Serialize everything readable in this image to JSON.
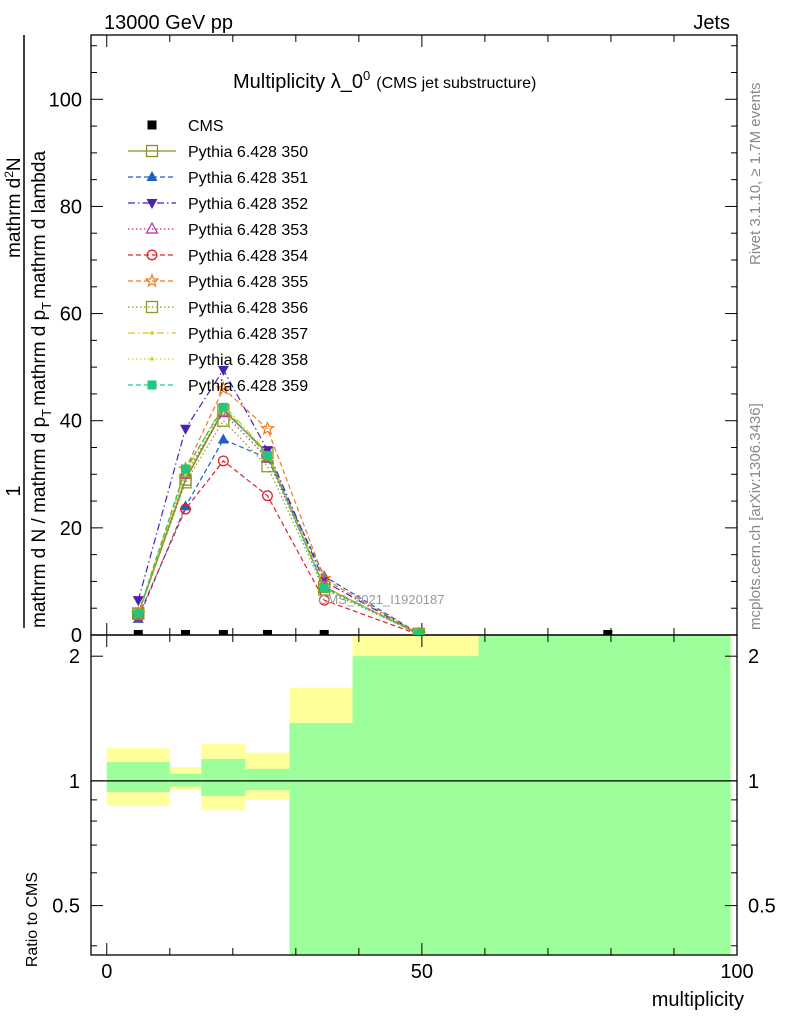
{
  "header": {
    "left": "13000 GeV pp",
    "right": "Jets"
  },
  "side_labels": {
    "rivet": "Rivet 3.1.10, ≥ 1.7M events",
    "mcplots": "mcplots.cern.ch [arXiv:1306.3436]"
  },
  "watermark": "CMS_2021_I1920187",
  "colors": {
    "cms": "#000000",
    "s350": "#8c8c2a",
    "s351": "#1f5fbf",
    "s352": "#4b22b0",
    "s353": "#b0309a",
    "s354": "#e0202a",
    "s355": "#f07a1f",
    "s356": "#8c9a22",
    "s357": "#d6c81e",
    "s358": "#c8d21e",
    "s359": "#21c77c",
    "band_inner": "#9cff9c",
    "band_outer": "#ffff9c"
  },
  "chart_data": [
    {
      "type": "line",
      "title": "Multiplicity λ_0",
      "title_sup": "0",
      "subtitle": "(CMS jet substructure)",
      "ylabel_numerator": "1",
      "ylabel_denominator": "mathrm d N / mathrm d p",
      "ylabel_denominator_sub": "T",
      "ylabel_denominator_tail": "mathrm d p",
      "ylabel_denominator_sub2": "T",
      "ylabel_denominator_end": "mathrm d lambda",
      "ylabel_top": "mathrm d",
      "ylabel_top_sup": "2",
      "ylabel_top_end": "N",
      "xlim": [
        -2.5,
        100
      ],
      "ylim": [
        0,
        112
      ],
      "yticks": [
        0,
        20,
        40,
        60,
        80,
        100
      ],
      "legend_position": "top-left",
      "x": [
        5,
        12.5,
        18.5,
        25.5,
        34.5,
        49.5
      ],
      "series": [
        {
          "name": "CMS",
          "marker": "square-filled",
          "style": "none",
          "points": [
            [
              5,
              0.1
            ],
            [
              12.5,
              0.1
            ],
            [
              18.5,
              0.1
            ],
            [
              25.5,
              0.1
            ],
            [
              34.5,
              0.1
            ],
            [
              79.5,
              0.1
            ]
          ]
        },
        {
          "name": "Pythia 6.428 350",
          "marker": "square-open",
          "style": "solid",
          "values": [
            4.0,
            29.0,
            42.0,
            34.0,
            9.0,
            0.2
          ]
        },
        {
          "name": "Pythia 6.428 351",
          "marker": "triangle-up-filled",
          "style": "dash",
          "values": [
            3.0,
            24.0,
            36.5,
            33.0,
            11.0,
            0.3
          ]
        },
        {
          "name": "Pythia 6.428 352",
          "marker": "triangle-down-filled",
          "style": "dashdot",
          "values": [
            6.5,
            38.5,
            49.5,
            34.5,
            10.0,
            0.2
          ]
        },
        {
          "name": "Pythia 6.428 353",
          "marker": "triangle-up-open",
          "style": "dot",
          "values": [
            4.0,
            30.0,
            41.5,
            33.0,
            9.0,
            0.2
          ]
        },
        {
          "name": "Pythia 6.428 354",
          "marker": "circle-open",
          "style": "dash",
          "values": [
            3.5,
            23.5,
            32.5,
            26.0,
            6.5,
            0.1
          ]
        },
        {
          "name": "Pythia 6.428 355",
          "marker": "star-open",
          "style": "dash",
          "values": [
            4.0,
            31.0,
            46.0,
            38.5,
            10.5,
            0.2
          ]
        },
        {
          "name": "Pythia 6.428 356",
          "marker": "square-open",
          "style": "dot",
          "values": [
            4.0,
            28.5,
            40.0,
            31.5,
            8.5,
            0.2
          ]
        },
        {
          "name": "Pythia 6.428 357",
          "marker": "dot",
          "style": "dashdot",
          "values": [
            4.0,
            30.5,
            43.0,
            34.0,
            9.0,
            0.2
          ]
        },
        {
          "name": "Pythia 6.428 358",
          "marker": "dot",
          "style": "dot",
          "values": [
            4.0,
            30.0,
            42.5,
            33.5,
            9.0,
            0.2
          ]
        },
        {
          "name": "Pythia 6.428 359",
          "marker": "square-filled",
          "style": "dash",
          "values": [
            4.0,
            31.0,
            42.5,
            33.5,
            8.8,
            0.2
          ]
        }
      ]
    },
    {
      "type": "area",
      "xlabel": "multiplicity",
      "ylabel": "Ratio to CMS",
      "xlim": [
        -2.5,
        100
      ],
      "ylim": [
        0.38,
        2.25
      ],
      "yscale": "log",
      "yticks": [
        0.5,
        1,
        2
      ],
      "xticks": [
        0,
        50,
        100
      ],
      "reference_line": 1,
      "bins": [
        {
          "x": [
            0,
            10
          ],
          "inner": [
            0.94,
            1.11
          ],
          "outer": [
            0.87,
            1.2
          ]
        },
        {
          "x": [
            10,
            15
          ],
          "inner": [
            0.97,
            1.04
          ],
          "outer": [
            0.95,
            1.08
          ]
        },
        {
          "x": [
            15,
            22
          ],
          "inner": [
            0.92,
            1.13
          ],
          "outer": [
            0.85,
            1.23
          ]
        },
        {
          "x": [
            22,
            29
          ],
          "inner": [
            0.95,
            1.07
          ],
          "outer": [
            0.9,
            1.17
          ]
        },
        {
          "x": [
            29,
            39
          ],
          "inner": [
            0.29,
            1.38
          ],
          "outer": [
            0.29,
            1.68
          ]
        },
        {
          "x": [
            39,
            59
          ],
          "inner": [
            0.29,
            2.0
          ],
          "outer": [
            0.29,
            2.5
          ]
        },
        {
          "x": [
            59,
            99
          ],
          "inner": [
            0.29,
            2.5
          ],
          "outer": [
            0.29,
            2.5
          ]
        }
      ]
    }
  ]
}
